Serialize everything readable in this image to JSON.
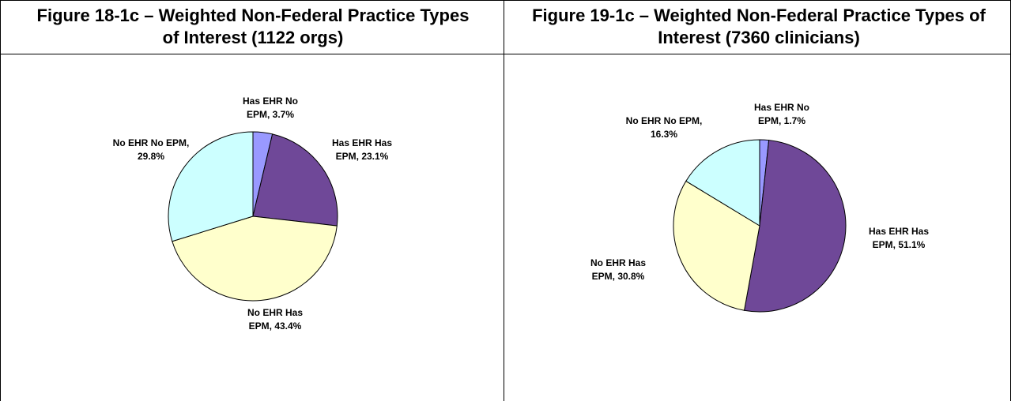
{
  "chart_data": [
    {
      "type": "pie",
      "title": "Figure 18-1c – Weighted Non-Federal Practice Types of Interest (1122 orgs)",
      "values": [
        3.7,
        23.1,
        43.4,
        29.8
      ],
      "value_labels": [
        "Has EHR No EPM, 3.7%",
        "Has EHR Has EPM, 23.1%",
        "No EHR Has EPM, 43.4%",
        "No EHR No EPM, 29.8%"
      ],
      "colors": [
        "#9999ff",
        "#6f4898",
        "#ffffcc",
        "#ccffff"
      ]
    },
    {
      "type": "pie",
      "title": "Figure 19-1c – Weighted Non-Federal Practice Types of Interest (7360 clinicians)",
      "values": [
        1.7,
        51.1,
        30.8,
        16.3
      ],
      "value_labels": [
        "Has EHR No EPM, 1.7%",
        "Has EHR Has EPM, 51.1%",
        "No EHR Has EPM, 30.8%",
        "No EHR No EPM, 16.3%"
      ],
      "colors": [
        "#9999ff",
        "#6f4898",
        "#ffffcc",
        "#ccffff"
      ]
    }
  ]
}
